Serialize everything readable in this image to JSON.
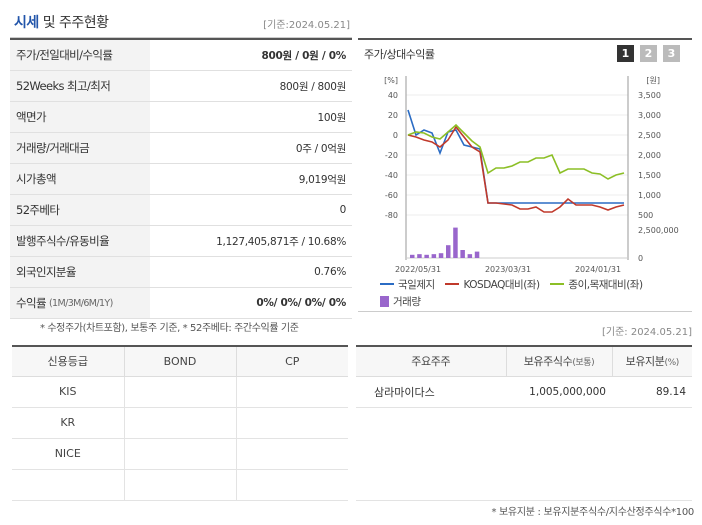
{
  "header": {
    "title_prefix": "시세",
    "title_rest": " 및 주주현황",
    "date": "[기준:2024.05.21]"
  },
  "info": {
    "rows": [
      {
        "label": "주가/전일대비/수익률",
        "value_bold": "800원 / 0원 / 0%"
      },
      {
        "label": "52Weeks 최고/최저",
        "value": "800원 / 800원"
      },
      {
        "label": "액면가",
        "value": "100원"
      },
      {
        "label": "거래량/거래대금",
        "value": "0주 / 0억원"
      },
      {
        "label": "시가총액",
        "value": "9,019억원"
      },
      {
        "label": "52주베타",
        "value": "0"
      },
      {
        "label": "발행주식수/유동비율",
        "value": "1,127,405,871주 / 10.68%"
      },
      {
        "label": "외국인지분율",
        "value": "0.76%"
      },
      {
        "label": "수익률",
        "label_sub": "(1M/3M/6M/1Y)",
        "value_bold": "0%/ 0%/ 0%/ 0%"
      }
    ],
    "footnote": "* 수정주가(차트포함), 보통주 기준, * 52주베타: 주간수익률 기준"
  },
  "chart_panel": {
    "title": "주가/상대수익률",
    "pages": [
      "1",
      "2",
      "3"
    ],
    "active_page": 0
  },
  "chart_data": {
    "type": "line",
    "left_unit": "[%]",
    "right_unit": "[원]",
    "left_ticks": [
      "40",
      "20",
      "0",
      "-20",
      "-40",
      "-60",
      "-80"
    ],
    "right_ticks": [
      "3,500",
      "3,000",
      "2,500",
      "2,000",
      "1,500",
      "1,000",
      "500"
    ],
    "volume_tick": "2,500,000",
    "volume_zero": "0",
    "x_ticks": [
      "2022/05/31",
      "2023/03/31",
      "2024/01/31"
    ],
    "left_ylim": [
      -80,
      40
    ],
    "series": [
      {
        "name": "국일제지",
        "color": "#2b6cc4",
        "values": [
          25,
          0,
          5,
          2,
          -18,
          3,
          5,
          -10,
          -12,
          -14,
          -68,
          -68,
          -68,
          -68,
          -68,
          -68,
          -68,
          -68,
          -68,
          -68,
          -68,
          -68,
          -68,
          -68,
          -68,
          -68,
          -68,
          -68
        ]
      },
      {
        "name": "KOSDAQ대비(좌)",
        "color": "#c0392b",
        "values": [
          0,
          -2,
          -5,
          -7,
          -12,
          -5,
          8,
          -2,
          -12,
          -17,
          -68,
          -68,
          -69,
          -70,
          -74,
          -74,
          -72,
          -77,
          -77,
          -72,
          -64,
          -70,
          -70,
          -70,
          -72,
          -75,
          -72,
          -70
        ]
      },
      {
        "name": "종이,목재대비(좌)",
        "color": "#8cbf26",
        "values": [
          0,
          3,
          2,
          -2,
          -4,
          3,
          10,
          2,
          -6,
          -12,
          -38,
          -33,
          -33,
          -31,
          -27,
          -27,
          -23,
          -23,
          -20,
          -38,
          -34,
          -34,
          -34,
          -38,
          -39,
          -44,
          -40,
          -38
        ]
      }
    ],
    "volume": {
      "name": "거래량",
      "color": "#9966cc",
      "values": [
        0.1,
        0.12,
        0.1,
        0.12,
        0.15,
        0.4,
        0.95,
        0.25,
        0.12,
        0.2
      ]
    }
  },
  "date_right": "[기준: 2024.05.21]",
  "credit": {
    "headers": [
      "신용등급",
      "BOND",
      "CP"
    ],
    "rows": [
      [
        "KIS",
        "",
        ""
      ],
      [
        "KR",
        "",
        ""
      ],
      [
        "NICE",
        "",
        ""
      ],
      [
        "",
        "",
        ""
      ]
    ]
  },
  "holders": {
    "headers": [
      "주요주주",
      "보유주식수",
      "(보통)",
      "보유지분",
      "(%)"
    ],
    "rows": [
      [
        "삼라마이다스",
        "1,005,000,000",
        "89.14"
      ]
    ],
    "footnote": "* 보유지분 : 보유지분주식수/지수산정주식수*100"
  }
}
